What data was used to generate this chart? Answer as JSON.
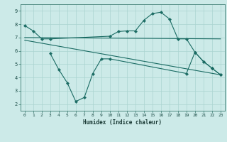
{
  "xlabel": "Humidex (Indice chaleur)",
  "background_color": "#cceae8",
  "grid_color": "#aad4d0",
  "line_color": "#1a6b63",
  "xlim": [
    -0.5,
    23.5
  ],
  "ylim": [
    1.5,
    9.5
  ],
  "xticks": [
    0,
    1,
    2,
    3,
    4,
    5,
    6,
    7,
    8,
    9,
    10,
    11,
    12,
    13,
    14,
    15,
    16,
    17,
    18,
    19,
    20,
    21,
    22,
    23
  ],
  "yticks": [
    2,
    3,
    4,
    5,
    6,
    7,
    8,
    9
  ],
  "series1_x": [
    0,
    1,
    2,
    3,
    10,
    11,
    12,
    13,
    14,
    15,
    16,
    17,
    18,
    19,
    20,
    21,
    22,
    23
  ],
  "series1_y": [
    7.9,
    7.5,
    6.9,
    6.9,
    7.1,
    7.45,
    7.5,
    7.5,
    8.3,
    8.8,
    8.9,
    8.4,
    6.9,
    6.9,
    5.9,
    5.2,
    4.7,
    4.2
  ],
  "series2_x": [
    0,
    23
  ],
  "series2_y": [
    7.0,
    6.9
  ],
  "series3_x": [
    0,
    23
  ],
  "series3_y": [
    6.8,
    4.2
  ],
  "series4_x": [
    3,
    4,
    5,
    6,
    7,
    8,
    9,
    10,
    19,
    20,
    21,
    22,
    23
  ],
  "series4_y": [
    5.8,
    4.6,
    3.6,
    2.2,
    2.5,
    4.3,
    5.4,
    5.4,
    4.3,
    5.9,
    5.2,
    4.7,
    4.2
  ]
}
